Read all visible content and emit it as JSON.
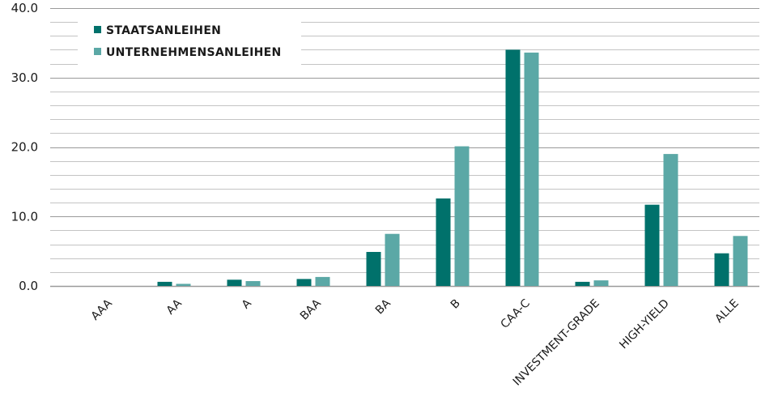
{
  "chart_data": {
    "type": "bar",
    "title": "",
    "xlabel": "",
    "ylabel": "",
    "ylim": [
      0,
      40
    ],
    "y_major_ticks": [
      0,
      10,
      20,
      30,
      40
    ],
    "y_tick_labels": [
      "0.0",
      "10.0",
      "20.0",
      "30.0",
      "40.0"
    ],
    "y_minor_step": 2,
    "grid": true,
    "legend_position": "top-left",
    "categories": [
      "AAA",
      "AA",
      "A",
      "BAA",
      "BA",
      "B",
      "CAA-C",
      "INVESTMENT-GRADE",
      "HIGH-YIELD",
      "ALLE"
    ],
    "series": [
      {
        "name": "STAATSANLEIHEN",
        "color": "#00716b",
        "values": [
          0.0,
          0.6,
          0.9,
          1.0,
          4.9,
          12.6,
          34.0,
          0.6,
          11.7,
          4.7
        ]
      },
      {
        "name": "UNTERNEHMENSANLEIHEN",
        "color": "#5ba8a6",
        "values": [
          0.0,
          0.3,
          0.7,
          1.3,
          7.5,
          20.1,
          33.6,
          0.8,
          19.0,
          7.2
        ]
      }
    ]
  }
}
